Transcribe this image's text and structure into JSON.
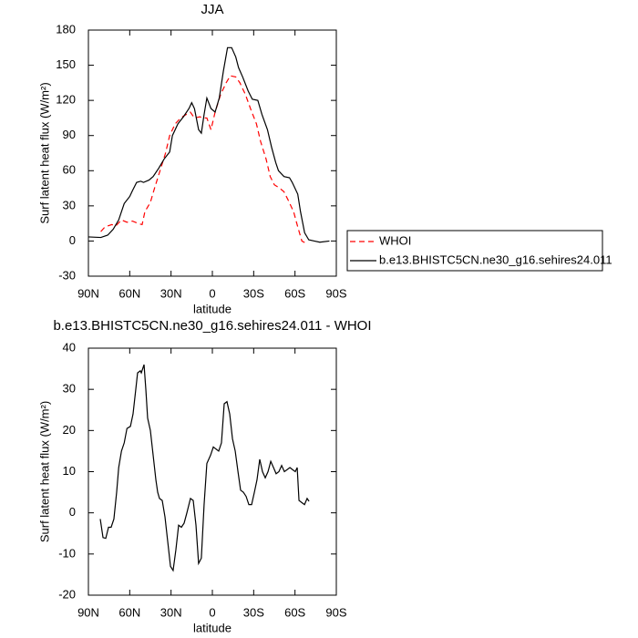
{
  "chart_data": [
    {
      "type": "line",
      "title": "JJA",
      "x_label": "latitude",
      "y_label": "Surf latent heat flux (W/m²)",
      "xlim": [
        90,
        -90
      ],
      "xticks": [
        {
          "value": 90,
          "label": "90N"
        },
        {
          "value": 60,
          "label": "60N"
        },
        {
          "value": 30,
          "label": "30N"
        },
        0,
        {
          "value": -30,
          "label": "30S"
        },
        {
          "value": -60,
          "label": "60S"
        },
        {
          "value": -90,
          "label": "90S"
        }
      ],
      "ylim": [
        -30,
        180
      ],
      "yticks": [
        -30,
        0,
        30,
        60,
        90,
        120,
        150,
        180
      ],
      "legend": "outside right",
      "series": [
        {
          "name": "WHOI",
          "color": "#ff0000",
          "line_style": "dashed",
          "x": [
            81,
            78,
            73,
            70,
            66,
            62,
            58,
            54,
            51,
            49,
            45,
            42,
            38,
            34,
            31,
            27,
            23,
            19,
            16,
            13,
            9,
            7,
            4,
            1,
            -2,
            -6,
            -10,
            -13,
            -17,
            -20,
            -24,
            -28,
            -32,
            -35,
            -39,
            -42,
            -45,
            -49,
            -52,
            -55,
            -59,
            -62,
            -65,
            -68
          ],
          "values": [
            8,
            12,
            14,
            13,
            18,
            16,
            17,
            15,
            14,
            25,
            33,
            45,
            60,
            75,
            90,
            100,
            105,
            108,
            110,
            105,
            106,
            105,
            105,
            95,
            110,
            125,
            135,
            141,
            140,
            135,
            125,
            112,
            100,
            85,
            70,
            55,
            48,
            45,
            42,
            35,
            25,
            12,
            0,
            -2
          ]
        },
        {
          "name": "b.e13.BHISTC5CN.ne30_g16.sehires24.011",
          "color": "#000000",
          "line_style": "solid",
          "x": [
            90,
            81,
            76,
            72,
            68,
            64,
            60,
            58,
            55,
            52,
            50,
            46,
            43,
            39,
            35,
            31,
            29,
            25,
            21,
            17,
            15,
            13,
            10,
            8,
            6,
            4,
            1,
            -2,
            -5,
            -8,
            -11,
            -14,
            -17,
            -19,
            -22,
            -26,
            -29,
            -33,
            -36,
            -40,
            -43,
            -46,
            -48,
            -52,
            -56,
            -58,
            -62,
            -64,
            -67,
            -70,
            -74,
            -78,
            -85
          ],
          "values": [
            3.5,
            3,
            5,
            10,
            18,
            32,
            38,
            43,
            50,
            51,
            50,
            52,
            55,
            62,
            70,
            76,
            90,
            100,
            106,
            113,
            118,
            113,
            95,
            92,
            108,
            122,
            113,
            110,
            122,
            145,
            165,
            165,
            157,
            148,
            140,
            128,
            121,
            120,
            108,
            95,
            80,
            67,
            60,
            55,
            54,
            50,
            40,
            25,
            7,
            1,
            0,
            -1,
            0
          ]
        }
      ]
    },
    {
      "type": "line",
      "title": "b.e13.BHISTC5CN.ne30_g16.sehires24.011 - WHOI",
      "x_label": "latitude",
      "y_label": "Surf latent heat flux (W/m²)",
      "xlim": [
        90,
        -90
      ],
      "xticks": [
        {
          "value": 90,
          "label": "90N"
        },
        {
          "value": 60,
          "label": "60N"
        },
        {
          "value": 30,
          "label": "30N"
        },
        0,
        {
          "value": -30,
          "label": "30S"
        },
        {
          "value": -60,
          "label": "60S"
        },
        {
          "value": -90,
          "label": "90S"
        }
      ],
      "ylim": [
        -20,
        40
      ],
      "yticks": [
        -20,
        -10,
        0,
        10,
        20,
        30,
        40
      ],
      "series": [
        {
          "color": "#000000",
          "line_style": "solid",
          "x": [
            81.4,
            79.4,
            77.4,
            75.4,
            73.5,
            71.5,
            69.5,
            68,
            66,
            64,
            62,
            59.5,
            57.6,
            55.6,
            54.3,
            52.3,
            51.6,
            49.6,
            48.3,
            47,
            45,
            43,
            41,
            39.7,
            38.4,
            36.4,
            34.4,
            32.4,
            30.4,
            28.5,
            26.5,
            24.5,
            22.5,
            20.5,
            18.5,
            15.9,
            13.9,
            11.9,
            10,
            8,
            6,
            4,
            1.3,
            -0.7,
            -2.6,
            -4.6,
            -6.6,
            -8.6,
            -10.6,
            -12.6,
            -14.6,
            -16.6,
            -18.6,
            -20.5,
            -22.5,
            -24.5,
            -26.5,
            -28.5,
            -30.5,
            -32.4,
            -34.4,
            -36.4,
            -38.4,
            -40.4,
            -42.4,
            -44.4,
            -46.3,
            -48.3,
            -50.3,
            -52.3,
            -54.3,
            -56.3,
            -58.2,
            -60.2,
            -61.6,
            -62.9,
            -64.9,
            -66.9,
            -68.8,
            -70.2
          ],
          "values": [
            -1.5,
            -6,
            -6.2,
            -3.5,
            -3.5,
            -1.5,
            5,
            11,
            15,
            17,
            20.5,
            21,
            24,
            30,
            34,
            34.5,
            34,
            36,
            30,
            23,
            20,
            14,
            8,
            5,
            3.5,
            3,
            -1,
            -7,
            -13,
            -14,
            -9,
            -3,
            -3.5,
            -2.5,
            0,
            3.5,
            3,
            -3,
            -12.3,
            -11,
            2,
            12,
            14,
            16,
            15.5,
            15,
            17,
            26.5,
            27,
            24,
            18,
            15,
            10,
            5.5,
            5,
            4,
            2,
            2,
            5,
            8,
            13,
            10,
            8.5,
            10,
            12.5,
            11,
            9.5,
            10,
            11.5,
            10,
            10.5,
            11,
            10.5,
            10,
            11,
            3,
            2.5,
            2,
            3.5,
            2.8
          ]
        }
      ]
    }
  ]
}
